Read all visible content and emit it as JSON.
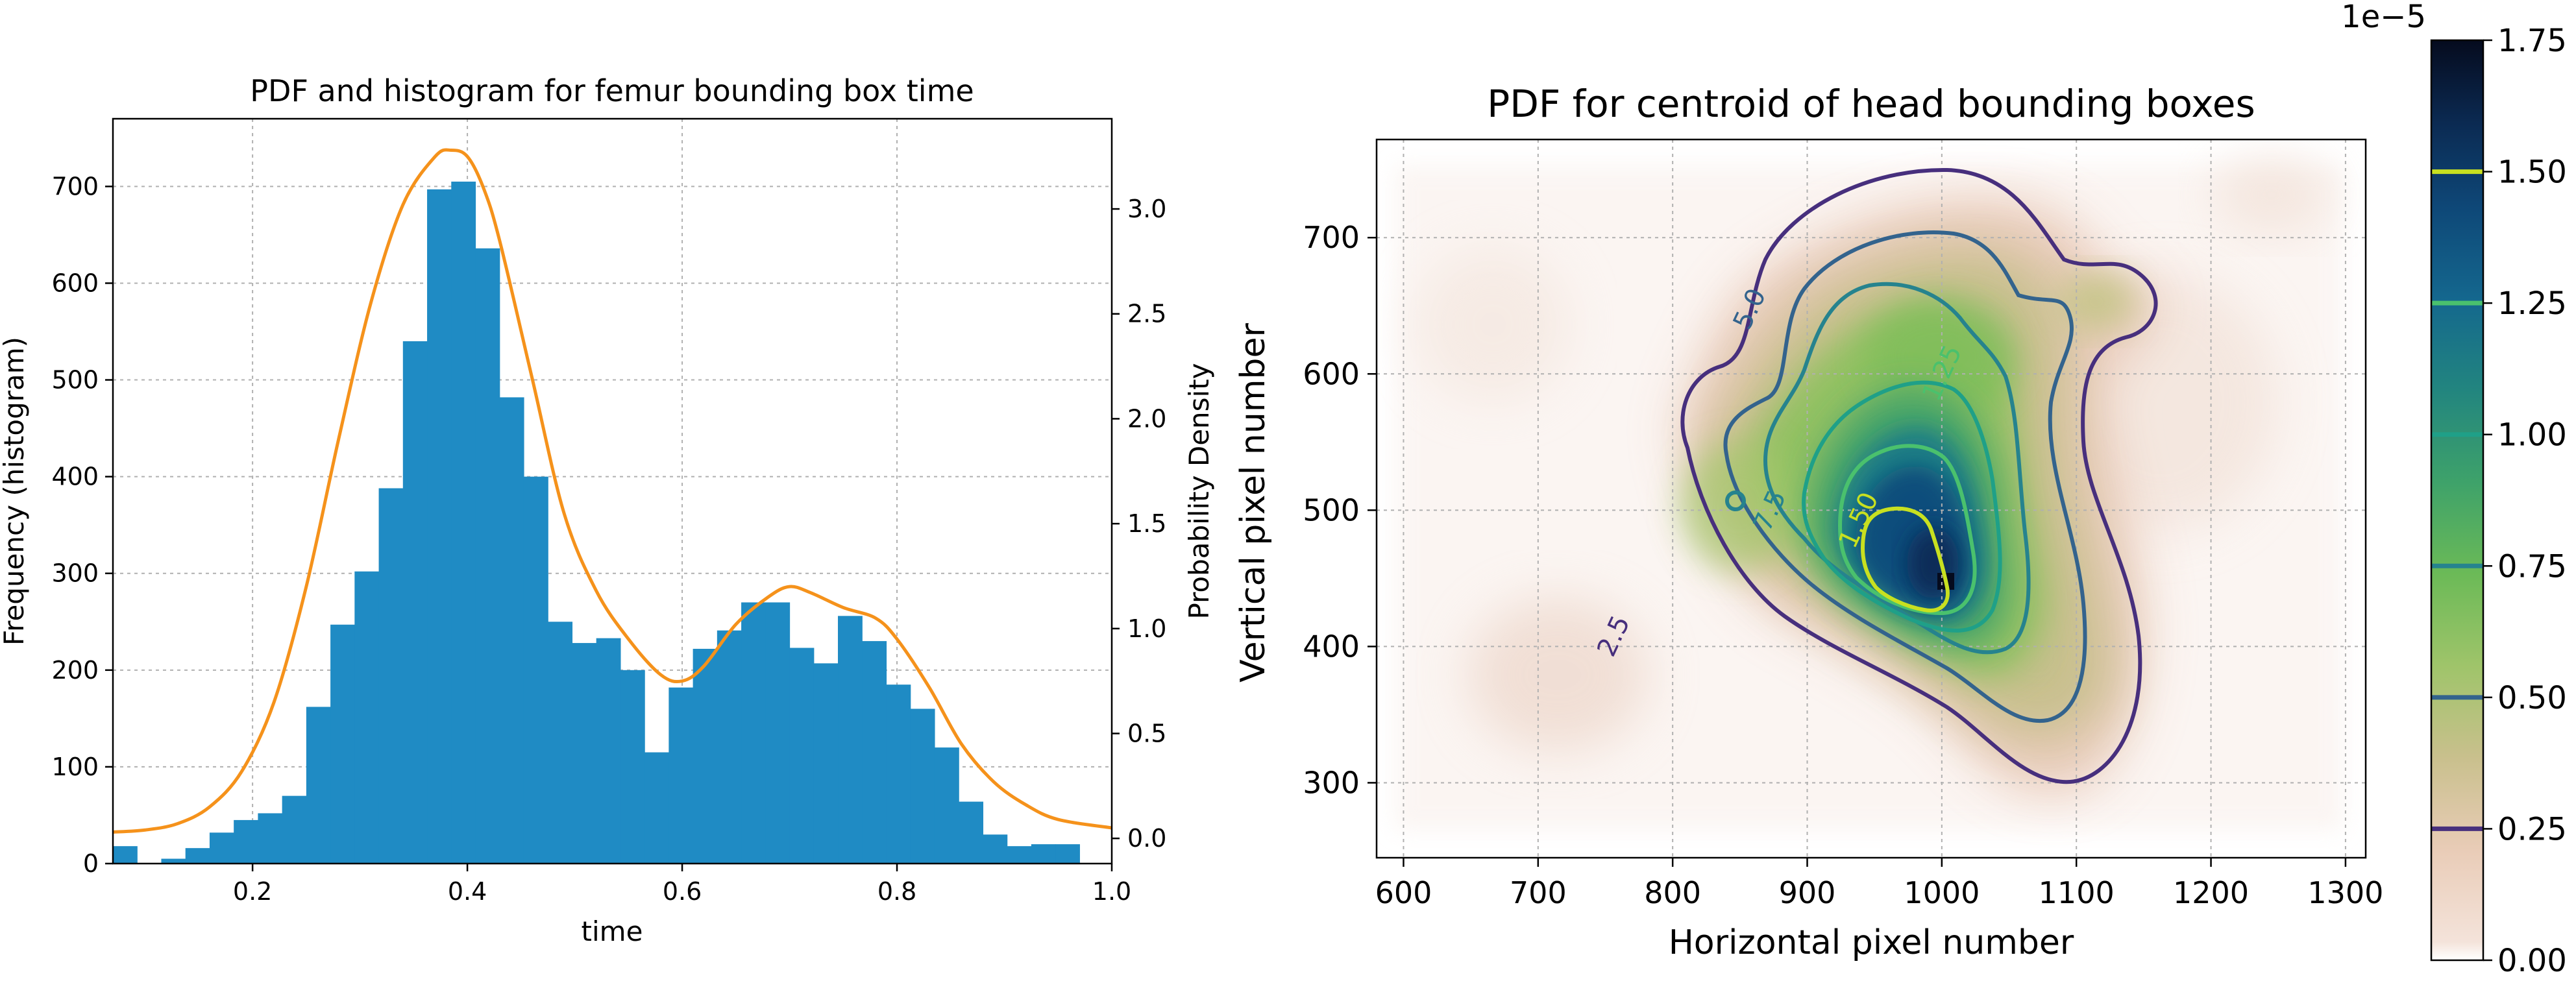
{
  "chart_data": [
    {
      "type": "bar",
      "title": "PDF and histogram for femur bounding box time",
      "xlabel": "time",
      "ylabel": "Frequency (histogram)",
      "y2label": "Probability Density",
      "xlim": [
        0.07,
        1.0
      ],
      "ylim": [
        0,
        770
      ],
      "y2lim": [
        -0.12,
        3.43
      ],
      "xticks": [
        "0.2",
        "0.4",
        "0.6",
        "0.8",
        "1.0"
      ],
      "xtick_values": [
        0.2,
        0.4,
        0.6,
        0.8,
        1.0
      ],
      "yticks": [
        "0",
        "100",
        "200",
        "300",
        "400",
        "500",
        "600",
        "700"
      ],
      "ytick_values": [
        0,
        100,
        200,
        300,
        400,
        500,
        600,
        700
      ],
      "y2ticks": [
        "0.0",
        "0.5",
        "1.0",
        "1.5",
        "2.0",
        "2.5",
        "3.0"
      ],
      "y2tick_values": [
        0,
        0.5,
        1.0,
        1.5,
        2.0,
        2.5,
        3.0
      ],
      "grid": true,
      "bar_color": "#1f8bc4",
      "line_color": "#f5921b",
      "histogram": {
        "bin_start": 0.07,
        "bin_width": 0.0225,
        "counts": [
          18,
          0,
          5,
          16,
          32,
          45,
          52,
          70,
          162,
          247,
          302,
          388,
          540,
          697,
          705,
          636,
          482,
          400,
          250,
          228,
          233,
          200,
          115,
          182,
          222,
          241,
          270,
          270,
          223,
          207,
          256,
          230,
          185,
          160,
          120,
          64,
          30,
          18,
          20,
          20
        ]
      },
      "pdf_series": {
        "name": "PDF",
        "x": [
          0.07,
          0.1,
          0.13,
          0.16,
          0.19,
          0.22,
          0.25,
          0.28,
          0.31,
          0.34,
          0.37,
          0.385,
          0.4,
          0.415,
          0.43,
          0.46,
          0.49,
          0.52,
          0.55,
          0.58,
          0.6,
          0.62,
          0.65,
          0.68,
          0.7,
          0.72,
          0.75,
          0.78,
          0.8,
          0.83,
          0.86,
          0.89,
          0.92,
          0.95,
          1.0
        ],
        "y": [
          0.03,
          0.04,
          0.07,
          0.15,
          0.32,
          0.65,
          1.2,
          1.9,
          2.55,
          3.02,
          3.25,
          3.28,
          3.25,
          3.1,
          2.85,
          2.2,
          1.55,
          1.18,
          0.95,
          0.78,
          0.75,
          0.82,
          1.02,
          1.15,
          1.2,
          1.17,
          1.1,
          1.05,
          0.95,
          0.72,
          0.45,
          0.27,
          0.16,
          0.09,
          0.05
        ]
      }
    },
    {
      "type": "heatmap",
      "title": "PDF for centroid of head bounding boxes",
      "xlabel": "Horizontal pixel number",
      "ylabel": "Vertical pixel number",
      "xlim": [
        580,
        1315
      ],
      "ylim": [
        245,
        772
      ],
      "xticks": [
        "600",
        "700",
        "800",
        "900",
        "1000",
        "1100",
        "1200",
        "1300"
      ],
      "xtick_values": [
        600,
        700,
        800,
        900,
        1000,
        1100,
        1200,
        1300
      ],
      "yticks": [
        "300",
        "400",
        "500",
        "600",
        "700"
      ],
      "ytick_values": [
        300,
        400,
        500,
        600,
        700
      ],
      "grid": true,
      "colorbar": {
        "multiplier": "1e−5",
        "ticks": [
          "0.00",
          "0.25",
          "0.50",
          "0.75",
          "1.00",
          "1.25",
          "1.50",
          "1.75"
        ],
        "tick_values": [
          0,
          0.25,
          0.5,
          0.75,
          1.0,
          1.25,
          1.5,
          1.75
        ],
        "range": [
          0,
          1.75
        ]
      },
      "contour_levels": [
        0.25,
        0.5,
        0.75,
        1.0,
        1.25,
        1.5
      ],
      "contour_labels": [
        {
          "text": "2.5",
          "x": 762,
          "y": 405,
          "level": 0.25
        },
        {
          "text": "5.0",
          "x": 863,
          "y": 645,
          "level": 0.5
        },
        {
          "text": "7.5",
          "x": 878,
          "y": 497,
          "level": 0.75
        },
        {
          "text": "1.25",
          "x": 1006,
          "y": 598,
          "level": 1.25
        },
        {
          "text": "1.50",
          "x": 944,
          "y": 490,
          "level": 1.5
        }
      ],
      "density_peak": {
        "x": 970,
        "y": 470
      }
    }
  ]
}
